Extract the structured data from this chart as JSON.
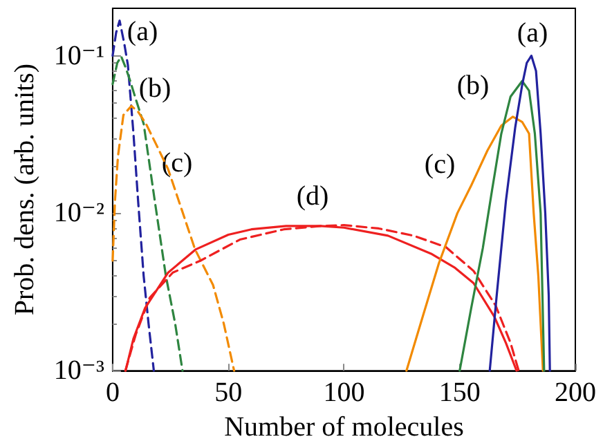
{
  "chart_data": {
    "type": "line",
    "xlabel": "Number of molecules",
    "ylabel": "Prob. dens. (arb. units)",
    "log": "y",
    "grid": false,
    "marker": "none",
    "xlim": [
      0,
      200
    ],
    "xticks": [
      0,
      50,
      100,
      150,
      200
    ],
    "ylim": [
      0.001,
      0.2
    ],
    "yticks": [
      {
        "value": 0.001,
        "label": "10⁻³"
      },
      {
        "value": 0.01,
        "label": "10⁻²"
      },
      {
        "value": 0.1,
        "label": "10⁻¹"
      }
    ],
    "series": [
      {
        "color": "#22229e",
        "line_style": "dashed",
        "x": [
          0,
          1.5,
          3,
          5,
          6.6,
          9,
          11,
          13.4,
          15.5,
          17.8
        ],
        "values": [
          0.1,
          0.14,
          0.167,
          0.12,
          0.087,
          0.032,
          0.012,
          0.004,
          0.002,
          0.001
        ]
      },
      {
        "color": "#2e8540",
        "line_style": "dashed",
        "x": [
          0,
          2,
          3.7,
          5.5,
          7.6,
          10,
          13.4,
          18.2,
          23,
          27,
          30.2
        ],
        "values": [
          0.066,
          0.09,
          0.099,
          0.085,
          0.069,
          0.053,
          0.037,
          0.012,
          0.004,
          0.002,
          0.001
        ]
      },
      {
        "color": "#f28a00",
        "line_style": "dashed",
        "x": [
          0,
          1,
          2.3,
          4.65,
          8.1,
          11,
          14.4,
          19,
          24,
          29.8,
          35.6,
          43.4,
          48,
          52.5
        ],
        "values": [
          0.005,
          0.012,
          0.023,
          0.042,
          0.048,
          0.044,
          0.037,
          0.027,
          0.019,
          0.0106,
          0.0059,
          0.0035,
          0.002,
          0.001
        ]
      },
      {
        "color": "#ee2020",
        "line_style": "dashed",
        "x": [
          5.5,
          10,
          16,
          26,
          38,
          55,
          74,
          90,
          100,
          115,
          130,
          144,
          156,
          165.5,
          172,
          175.5
        ],
        "values": [
          0.001,
          0.0017,
          0.0029,
          0.0042,
          0.005,
          0.0068,
          0.0079,
          0.0083,
          0.0084,
          0.008,
          0.0072,
          0.0061,
          0.0043,
          0.0026,
          0.0015,
          0.001
        ]
      },
      {
        "color": "#ee2020",
        "line_style": "solid",
        "x": [
          5.6,
          9,
          14,
          24,
          36,
          50,
          60,
          75,
          90,
          100,
          119,
          138,
          148,
          156,
          165,
          170,
          174.6
        ],
        "values": [
          0.001,
          0.0016,
          0.0025,
          0.0042,
          0.0059,
          0.0073,
          0.0079,
          0.0083,
          0.0083,
          0.0081,
          0.0072,
          0.0055,
          0.0045,
          0.0036,
          0.0022,
          0.0015,
          0.001
        ]
      },
      {
        "color": "#f28a00",
        "line_style": "solid",
        "x": [
          127,
          134,
          141,
          149,
          155,
          162,
          168,
          173,
          177,
          180,
          182,
          184,
          186
        ],
        "values": [
          0.001,
          0.0022,
          0.0048,
          0.01,
          0.015,
          0.025,
          0.036,
          0.041,
          0.038,
          0.032,
          0.01,
          0.004,
          0.001
        ]
      },
      {
        "color": "#2e8540",
        "line_style": "solid",
        "x": [
          150,
          155,
          160,
          164,
          168,
          172,
          177,
          180,
          182.5,
          185,
          186.5
        ],
        "values": [
          0.001,
          0.0025,
          0.006,
          0.014,
          0.032,
          0.055,
          0.069,
          0.06,
          0.032,
          0.01,
          0.001
        ]
      },
      {
        "color": "#22229e",
        "line_style": "solid",
        "x": [
          163,
          166,
          170,
          174,
          177,
          179,
          181,
          183,
          185,
          187,
          188.5,
          189
        ],
        "values": [
          0.001,
          0.003,
          0.012,
          0.035,
          0.065,
          0.09,
          0.1,
          0.08,
          0.032,
          0.01,
          0.003,
          0.001
        ]
      }
    ],
    "annotations": [
      "(a)",
      "(b)",
      "(c)",
      "(d)",
      "(a)",
      "(b)",
      "(c)"
    ]
  }
}
